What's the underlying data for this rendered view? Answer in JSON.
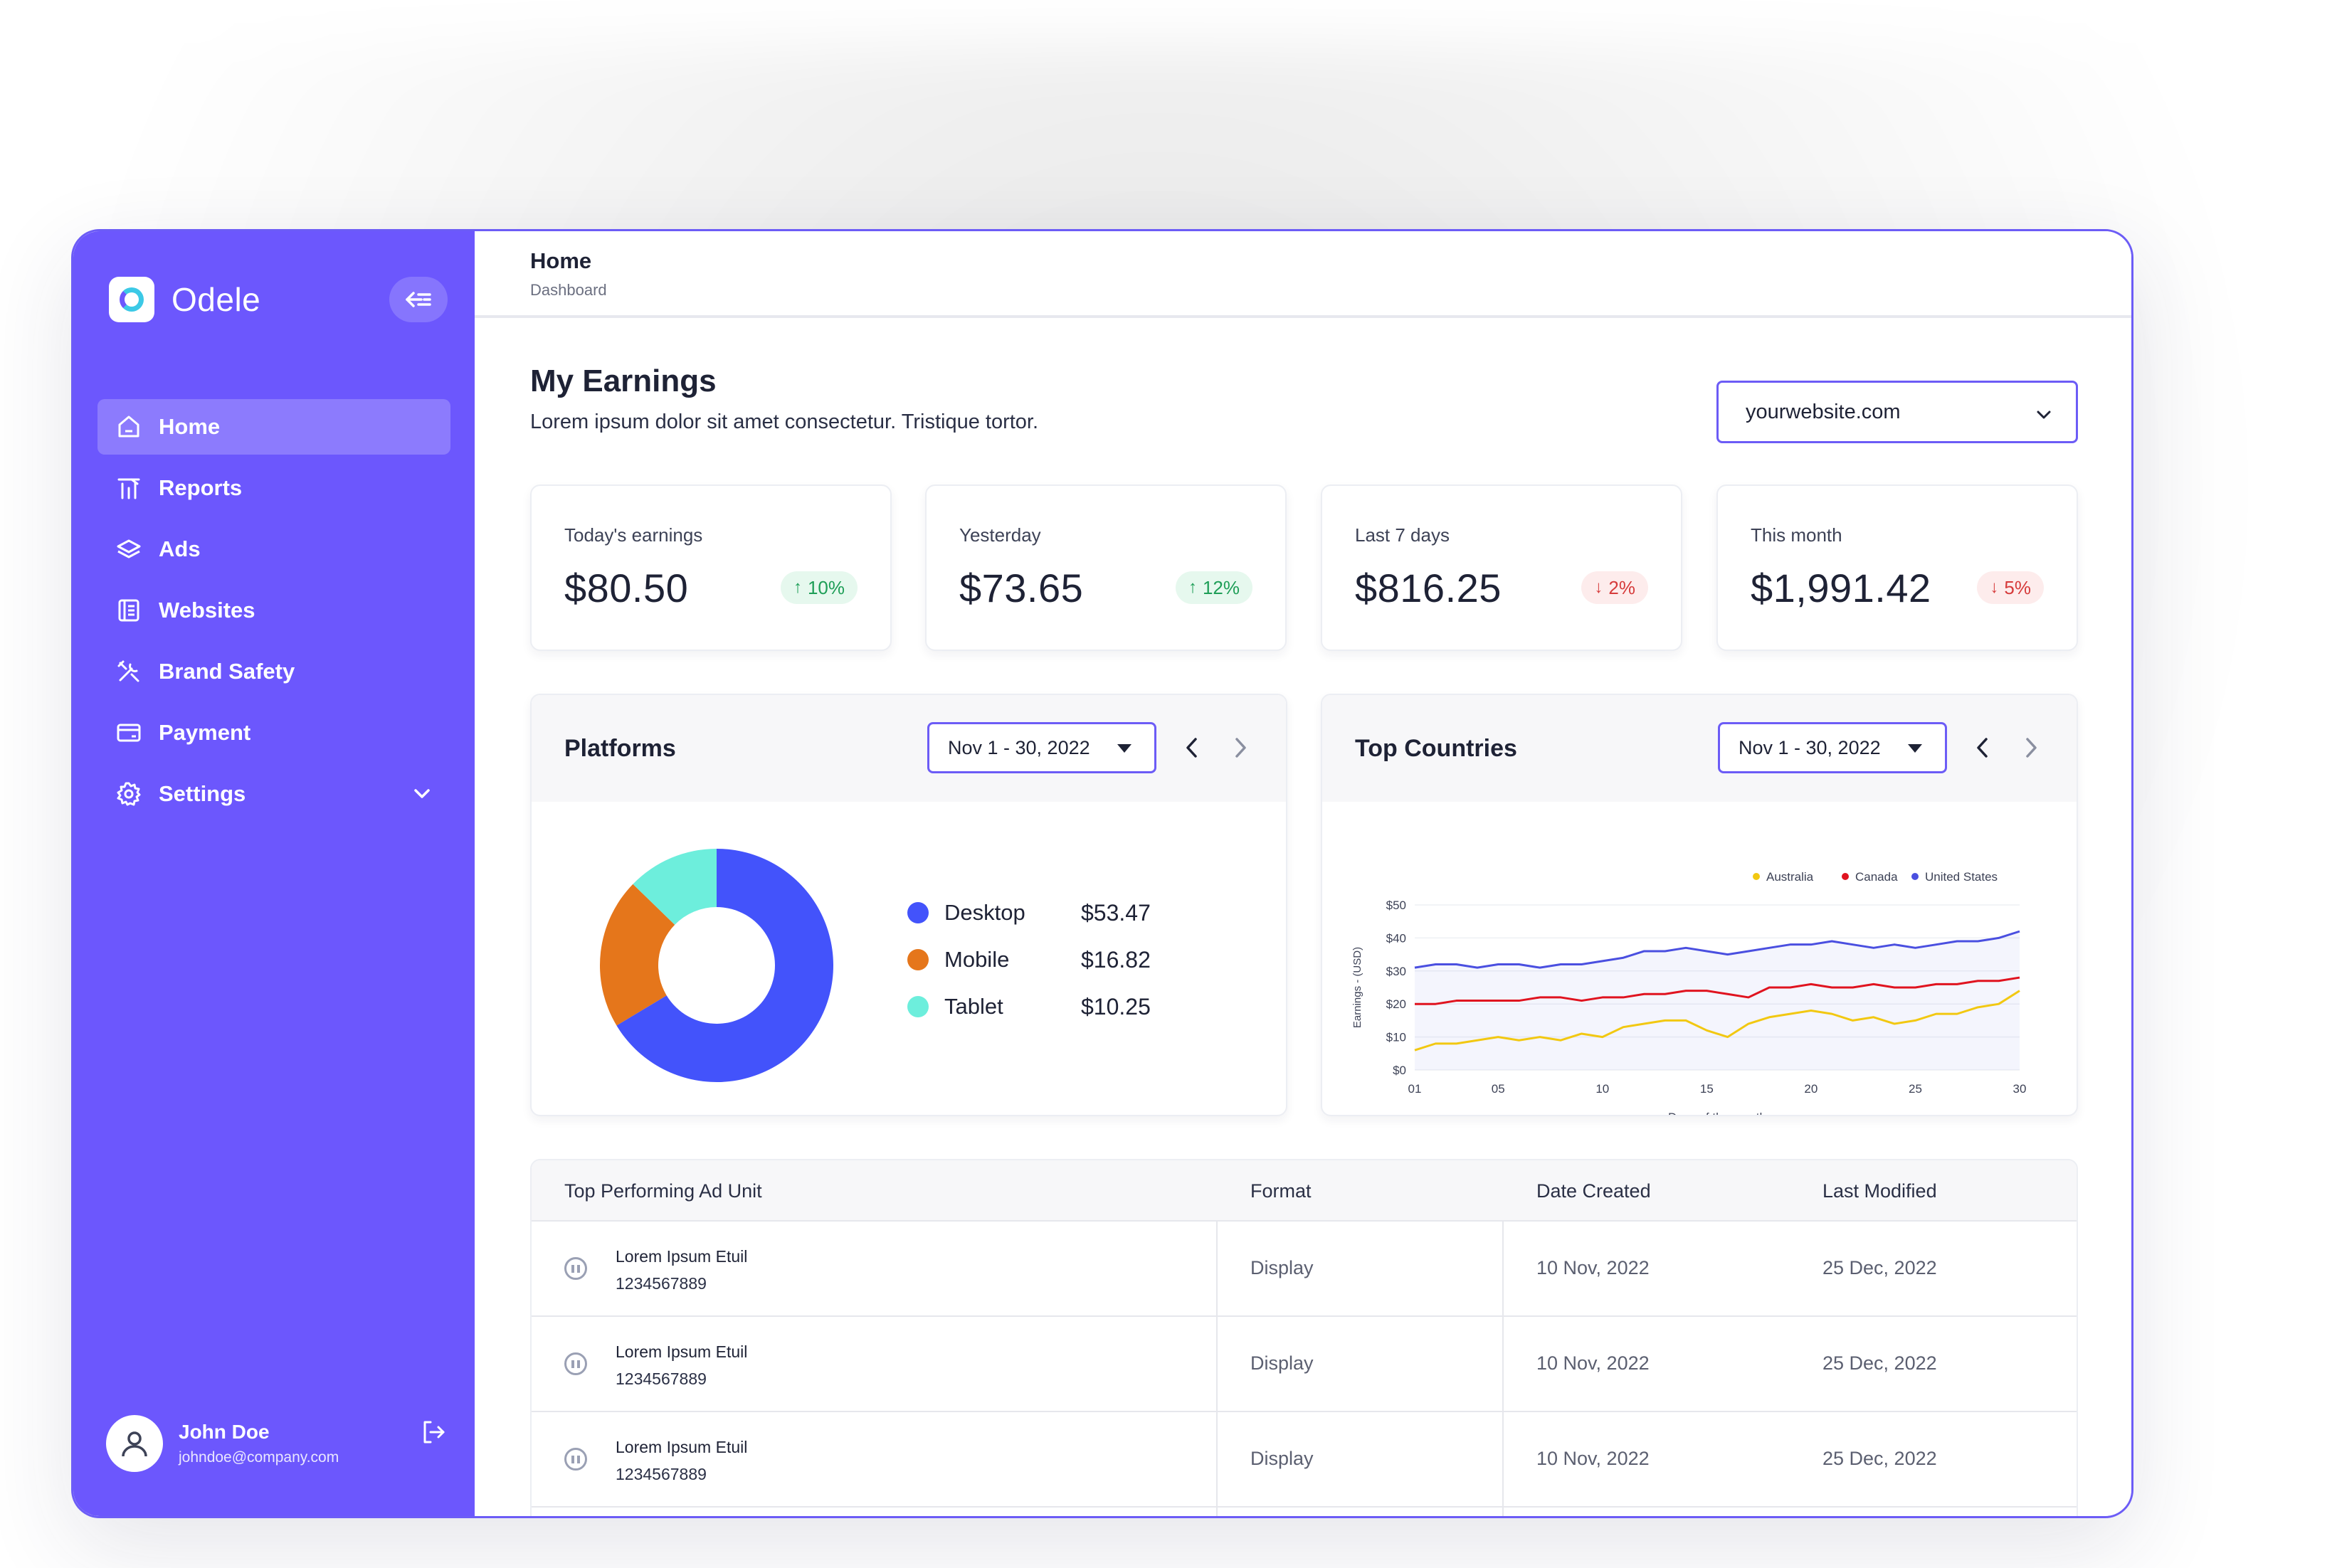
{
  "app": {
    "name": "Odele",
    "accent": "#6c57fd",
    "border_accent": "#6c5cf6"
  },
  "sidebar": {
    "items": [
      {
        "label": "Home",
        "icon": "home-icon",
        "active": true
      },
      {
        "label": "Reports",
        "icon": "reports-icon"
      },
      {
        "label": "Ads",
        "icon": "layers-icon"
      },
      {
        "label": "Websites",
        "icon": "websites-icon"
      },
      {
        "label": "Brand Safety",
        "icon": "tools-icon"
      },
      {
        "label": "Payment",
        "icon": "payment-icon"
      },
      {
        "label": "Settings",
        "icon": "gear-icon",
        "expandable": true
      }
    ],
    "user": {
      "name": "John Doe",
      "email": "johndoe@company.com"
    }
  },
  "header": {
    "title": "Home",
    "breadcrumb": "Dashboard"
  },
  "earnings": {
    "title": "My Earnings",
    "subtitle": "Lorem ipsum dolor sit amet consectetur. Tristique tortor.",
    "site": "yourwebsite.com",
    "stats": [
      {
        "label": "Today's earnings",
        "value": "$80.50",
        "change": "10%",
        "direction": "up"
      },
      {
        "label": "Yesterday",
        "value": "$73.65",
        "change": "12%",
        "direction": "up"
      },
      {
        "label": "Last 7 days",
        "value": "$816.25",
        "change": "2%",
        "direction": "down"
      },
      {
        "label": "This month",
        "value": "$1,991.42",
        "change": "5%",
        "direction": "down"
      }
    ]
  },
  "platforms": {
    "title": "Platforms",
    "date_range": "Nov 1 - 30, 2022",
    "items": [
      {
        "label": "Desktop",
        "amount": "$53.47",
        "color": "#4353fb"
      },
      {
        "label": "Mobile",
        "amount": "$16.82",
        "color": "#e5761b"
      },
      {
        "label": "Tablet",
        "amount": "$10.25",
        "color": "#6deedc"
      }
    ]
  },
  "countries": {
    "title": "Top Countries",
    "date_range": "Nov 1 - 30, 2022"
  },
  "chart_data": [
    {
      "type": "pie",
      "categories": [
        "Desktop",
        "Mobile",
        "Tablet"
      ],
      "values": [
        53.47,
        16.82,
        10.25
      ],
      "colors": [
        "#4353fb",
        "#e5761b",
        "#6deedc"
      ],
      "donut": true
    },
    {
      "type": "line",
      "xlabel": "Days of the month",
      "ylabel": "Earnings - (USD)",
      "x_ticks": [
        "01",
        "05",
        "10",
        "15",
        "20",
        "25",
        "30"
      ],
      "y_ticks": [
        "$0",
        "$10",
        "$20",
        "$30",
        "$40",
        "$50"
      ],
      "xlim": [
        1,
        30
      ],
      "ylim": [
        0,
        50
      ],
      "legend": "top-right",
      "x": [
        1,
        2,
        3,
        4,
        5,
        6,
        7,
        8,
        9,
        10,
        11,
        12,
        13,
        14,
        15,
        16,
        17,
        18,
        19,
        20,
        21,
        22,
        23,
        24,
        25,
        26,
        27,
        28,
        29,
        30
      ],
      "series": [
        {
          "name": "Australia",
          "color": "#f2c811",
          "values": [
            6,
            8,
            8,
            9,
            10,
            9,
            10,
            9,
            11,
            10,
            13,
            14,
            15,
            15,
            12,
            10,
            14,
            16,
            17,
            18,
            17,
            15,
            16,
            14,
            15,
            17,
            17,
            19,
            20,
            24
          ]
        },
        {
          "name": "Canada",
          "color": "#e0131f",
          "values": [
            20,
            20,
            21,
            21,
            21,
            21,
            22,
            22,
            21,
            22,
            22,
            23,
            23,
            24,
            24,
            23,
            22,
            25,
            25,
            26,
            25,
            25,
            26,
            25,
            25,
            26,
            26,
            27,
            27,
            28
          ]
        },
        {
          "name": "United States",
          "color": "#4a4fe0",
          "values": [
            31,
            32,
            32,
            31,
            32,
            32,
            31,
            32,
            32,
            33,
            34,
            36,
            36,
            37,
            36,
            35,
            36,
            37,
            38,
            38,
            39,
            38,
            37,
            38,
            37,
            38,
            39,
            39,
            40,
            42
          ]
        }
      ]
    }
  ],
  "table": {
    "headers": [
      "Top Performing Ad Unit",
      "Format",
      "Date Created",
      "Last Modified"
    ],
    "rows": [
      {
        "name": "Lorem Ipsum Etuil",
        "id": "1234567889",
        "format": "Display",
        "created": "10 Nov, 2022",
        "modified": "25 Dec, 2022"
      },
      {
        "name": "Lorem Ipsum Etuil",
        "id": "1234567889",
        "format": "Display",
        "created": "10 Nov, 2022",
        "modified": "25 Dec, 2022"
      },
      {
        "name": "Lorem Ipsum Etuil",
        "id": "1234567889",
        "format": "Display",
        "created": "10 Nov, 2022",
        "modified": "25 Dec, 2022"
      }
    ]
  }
}
